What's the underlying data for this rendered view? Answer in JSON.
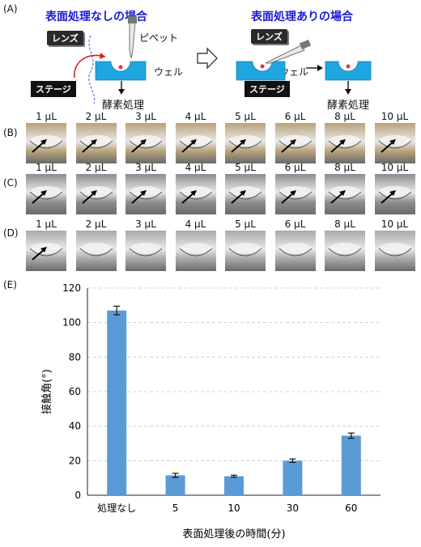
{
  "panel_labels": {
    "a": "(A)",
    "b": "(B)",
    "c": "(C)",
    "d": "(D)",
    "e": "(E)"
  },
  "schematic": {
    "left_title": "表面処理なしの場合",
    "right_title": "表面処理ありの場合",
    "lens": "レンズ",
    "pipette": "ピペット",
    "well": "ウェル",
    "stage": "ステージ",
    "enzyme": "酵素処理"
  },
  "photo_rows": {
    "volumes": [
      "1 µL",
      "2 µL",
      "3 µL",
      "4 µL",
      "5 µL",
      "6 µL",
      "8 µL",
      "10 µL"
    ],
    "row_b": {
      "tone": "#b8a27a",
      "arrows": [
        true,
        true,
        true,
        true,
        true,
        true,
        true,
        true
      ]
    },
    "row_c": {
      "tone": "#8c8c8c",
      "arrows": [
        true,
        true,
        true,
        true,
        true,
        true,
        true,
        true
      ]
    },
    "row_d": {
      "tone": "#a9a9a9",
      "arrows": [
        true,
        false,
        false,
        false,
        false,
        false,
        false,
        false
      ]
    }
  },
  "chart_data": {
    "type": "bar",
    "categories": [
      "処理なし",
      "5",
      "10",
      "30",
      "60"
    ],
    "values": [
      107,
      11.5,
      11,
      20,
      34.5
    ],
    "errors": [
      2.5,
      1.2,
      0.6,
      1,
      1.5
    ],
    "xlabel": "表面処理後の時間(分)",
    "ylabel": "接触角(°)",
    "ylim": [
      0,
      120
    ],
    "yticks": [
      "0",
      "20",
      "40",
      "60",
      "80",
      "100",
      "120"
    ],
    "grid": true,
    "bar_color": "#5b9bd5"
  }
}
